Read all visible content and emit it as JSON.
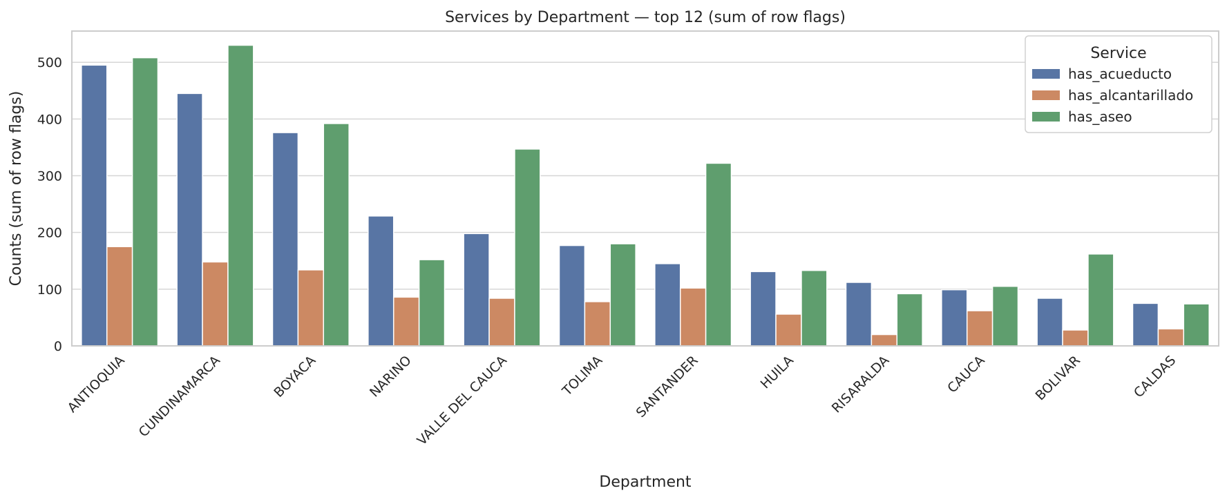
{
  "chart_data": {
    "type": "bar",
    "title": "Services by Department — top 12 (sum of row flags)",
    "xlabel": "Department",
    "ylabel": "Counts (sum of row flags)",
    "ylim": [
      0,
      555
    ],
    "yticks": [
      0,
      100,
      200,
      300,
      400,
      500
    ],
    "grid": true,
    "legend_title": "Service",
    "legend_position": "top-right",
    "categories": [
      "ANTIOQUIA",
      "CUNDINAMARCA",
      "BOYACA",
      "NARINO",
      "VALLE DEL CAUCA",
      "TOLIMA",
      "SANTANDER",
      "HUILA",
      "RISARALDA",
      "CAUCA",
      "BOLIVAR",
      "CALDAS"
    ],
    "series": [
      {
        "name": "has_acueducto",
        "color": "#5875a4",
        "values": [
          495,
          445,
          376,
          229,
          198,
          177,
          145,
          131,
          112,
          99,
          84,
          75
        ]
      },
      {
        "name": "has_alcantarillado",
        "color": "#cc8963",
        "values": [
          175,
          148,
          134,
          86,
          84,
          78,
          102,
          56,
          20,
          62,
          28,
          30
        ]
      },
      {
        "name": "has_aseo",
        "color": "#5f9e6e",
        "values": [
          508,
          530,
          392,
          152,
          347,
          180,
          322,
          133,
          92,
          105,
          162,
          74
        ]
      }
    ]
  }
}
